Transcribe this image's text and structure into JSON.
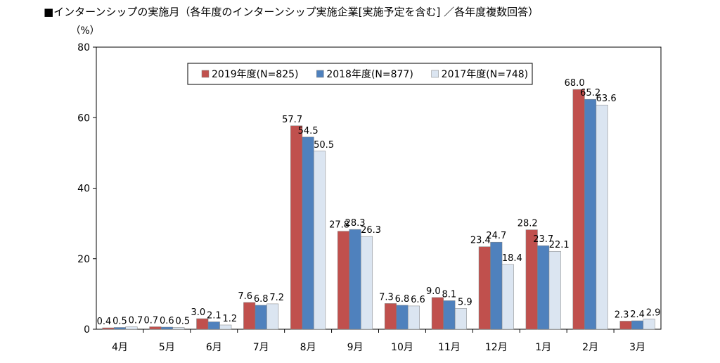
{
  "page": {
    "title": "■インターンシップの実施月（各年度のインターンシップ実施企業[実施予定を含む] ／各年度複数回答）"
  },
  "chart_data": {
    "type": "bar",
    "title": "■インターンシップの実施月（各年度のインターンシップ実施企業[実施予定を含む] ／各年度複数回答）",
    "xlabel": "",
    "ylabel": "（%）",
    "ylim": [
      0,
      80
    ],
    "yticks": [
      0,
      20,
      40,
      60,
      80
    ],
    "grid": false,
    "legend_position": "top-center",
    "categories": [
      "4月",
      "5月",
      "6月",
      "7月",
      "8月",
      "9月",
      "10月",
      "11月",
      "12月",
      "1月",
      "2月",
      "3月"
    ],
    "series": [
      {
        "name": "2019年度(N=825)",
        "color": "#c0504d",
        "values": [
          0.4,
          0.7,
          3.0,
          7.6,
          57.7,
          27.8,
          7.3,
          9.0,
          23.4,
          28.2,
          68.0,
          2.3
        ],
        "labels": [
          "0.4",
          "0.7",
          "3.0",
          "7.6",
          "57.7",
          "27.8",
          "7.3",
          "9.0",
          "23.4",
          "28.2",
          "68.0",
          "2.3"
        ]
      },
      {
        "name": "2018年度(N=877)",
        "color": "#4f81bd",
        "values": [
          0.5,
          0.6,
          2.1,
          6.8,
          54.5,
          28.3,
          6.8,
          8.1,
          24.7,
          23.7,
          65.2,
          2.4
        ],
        "labels": [
          "0.5",
          "0.6",
          "2.1",
          "6.8",
          "54.5",
          "28.3",
          "6.8",
          "8.1",
          "24.7",
          "23.7",
          "65.2",
          "2.4"
        ]
      },
      {
        "name": "2017年度(N=748)",
        "color": "#dbe5f1",
        "values": [
          0.7,
          0.5,
          1.2,
          7.2,
          50.5,
          26.3,
          6.6,
          5.9,
          18.4,
          22.1,
          63.6,
          2.9
        ],
        "labels": [
          "0.7",
          "0.5",
          "1.2",
          "7.2",
          "50.5",
          "26.3",
          "6.6",
          "5.9",
          "18.4",
          "22.1",
          "63.6",
          "2.9"
        ]
      }
    ]
  }
}
